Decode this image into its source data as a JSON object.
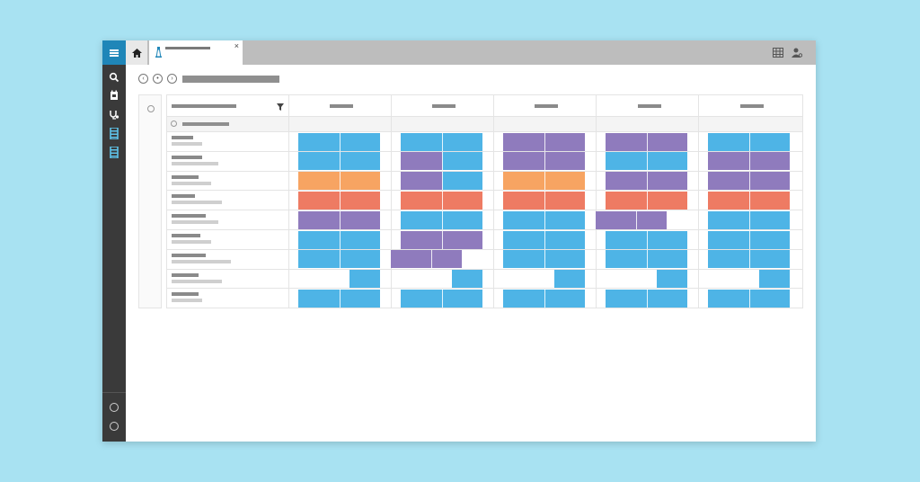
{
  "app": {
    "sidebar_icons": [
      "menu-icon",
      "search-icon",
      "calendar-icon",
      "stethoscope-icon",
      "ladder-icon",
      "ladder-icon",
      "clock-icon",
      "compass-icon"
    ],
    "tab_icons": [
      "home-icon",
      "tower-icon",
      "close-icon",
      "grid-view-icon",
      "user-settings-icon"
    ]
  },
  "colors": {
    "accent": "#1f86b8",
    "blue": "#4eb4e6",
    "purple": "#8f7bbd",
    "orange": "#f7a462",
    "red": "#ee7b63"
  },
  "grid": {
    "columns": 5,
    "rows": [
      [
        "blue",
        "blue",
        "purple",
        "purple",
        "blue"
      ],
      [
        "blue",
        "purple-blue",
        "purple",
        "blue",
        "purple"
      ],
      [
        "orange",
        "purple-blue",
        "orange",
        "purple",
        "purple"
      ],
      [
        "red",
        "red",
        "red",
        "red",
        "red"
      ],
      [
        "purple",
        "blue",
        "blue",
        "purple-wide",
        "blue"
      ],
      [
        "blue",
        "purple-shift",
        "blue",
        "blue",
        "blue"
      ],
      [
        "blue",
        "purple-left",
        "blue",
        "blue",
        "blue"
      ],
      [
        "single-right",
        "single-right",
        "single-right",
        "single-right",
        "single-right"
      ],
      [
        "blue",
        "blue",
        "blue",
        "blue",
        "blue"
      ]
    ]
  }
}
